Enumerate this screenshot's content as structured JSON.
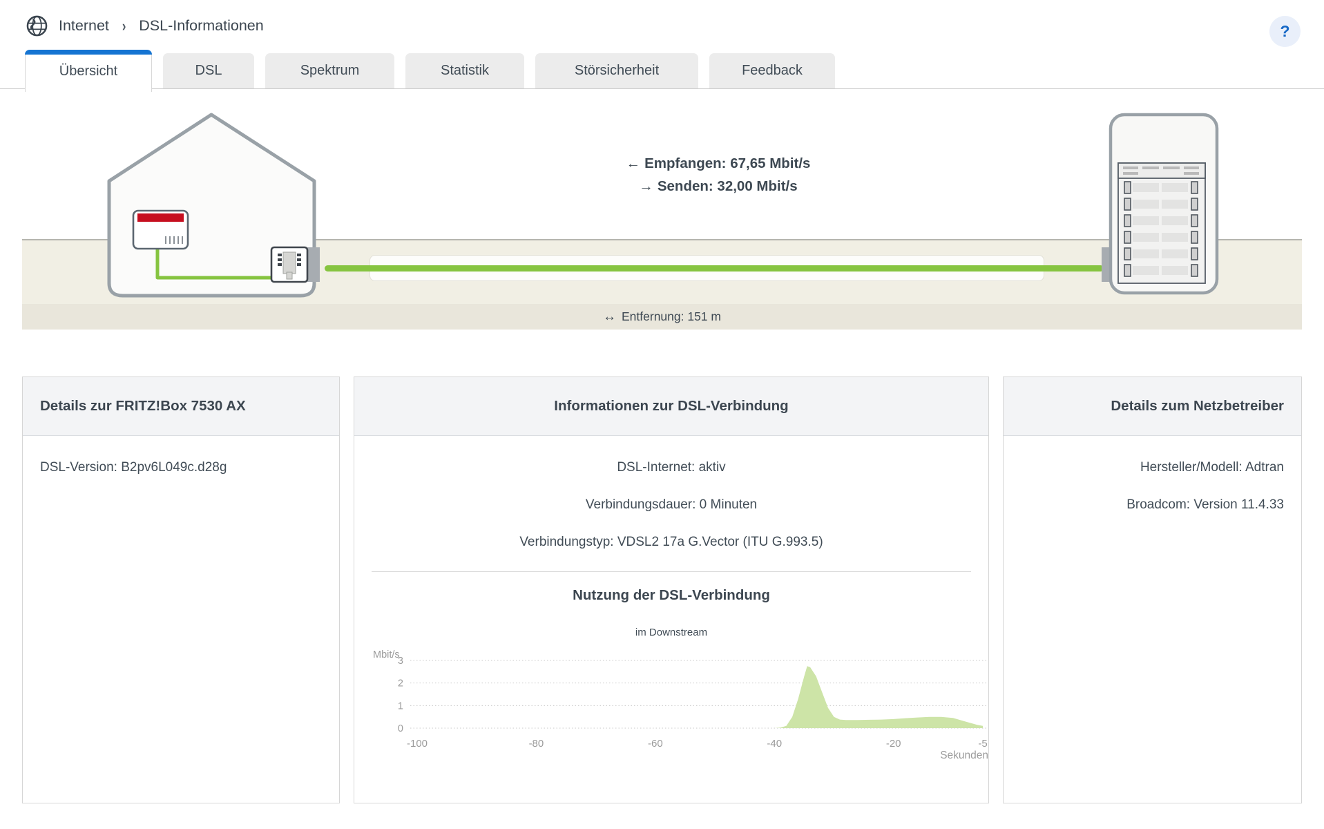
{
  "colors": {
    "accent_blue": "#1574d2",
    "link_green": "#86c440",
    "area_green": "#cde4a7",
    "fritz_red": "#c60e1f",
    "ground_beige": "#f1efe4",
    "strip_beige": "#e9e6db"
  },
  "breadcrumb": {
    "section": "Internet",
    "separator": "›",
    "page": "DSL-Informationen"
  },
  "help": {
    "label": "?"
  },
  "tabs": [
    {
      "label": "Übersicht",
      "active": true
    },
    {
      "label": "DSL",
      "active": false
    },
    {
      "label": "Spektrum",
      "active": false
    },
    {
      "label": "Statistik",
      "active": false
    },
    {
      "label": "Störsicherheit",
      "active": false
    },
    {
      "label": "Feedback",
      "active": false
    }
  ],
  "diagram": {
    "receive_arrow": "←",
    "receive_label": "Empfangen: 67,65 Mbit/s",
    "send_arrow": "→",
    "send_label": "Senden: 32,00 Mbit/s",
    "distance_arrow": "↔",
    "distance_label": "Entfernung: 151 m"
  },
  "cards": {
    "fritzbox": {
      "title": "Details zur FRITZ!Box 7530 AX",
      "lines": [
        "DSL-Version: B2pv6L049c.d28g"
      ]
    },
    "connection": {
      "title": "Informationen zur DSL-Verbindung",
      "lines": [
        "DSL-Internet: aktiv",
        "Verbindungsdauer: 0 Minuten",
        "Verbindungstyp: VDSL2 17a G.Vector (ITU G.993.5)"
      ],
      "usage_title": "Nutzung der DSL-Verbindung",
      "usage_subtitle": "im Downstream"
    },
    "provider": {
      "title": "Details zum Netzbetreiber",
      "lines": [
        "Hersteller/Modell: Adtran",
        "Broadcom: Version 11.4.33"
      ]
    }
  },
  "chart_data": {
    "type": "area",
    "title": "Nutzung der DSL-Verbindung",
    "subtitle": "im Downstream",
    "ylabel": "Mbit/s",
    "xlabel": "Sekunden",
    "ylim": [
      0,
      3
    ],
    "xlim": [
      -100,
      -5
    ],
    "yticks": [
      0,
      1,
      2,
      3
    ],
    "xticks": [
      -100,
      -80,
      -60,
      -40,
      -20,
      -5
    ],
    "grid": "dotted-horizontal",
    "legend": "none",
    "series": [
      {
        "name": "Downstream",
        "x": [
          -100,
          -95,
          -90,
          -85,
          -80,
          -75,
          -70,
          -65,
          -60,
          -55,
          -50,
          -45,
          -40,
          -39,
          -38,
          -37,
          -36,
          -35,
          -34.5,
          -34,
          -33,
          -32,
          -31,
          -30,
          -29,
          -28,
          -26,
          -24,
          -22,
          -20,
          -18,
          -16,
          -14,
          -12,
          -10,
          -8,
          -6,
          -5
        ],
        "y": [
          0,
          0,
          0,
          0,
          0,
          0,
          0,
          0,
          0,
          0,
          0,
          0,
          0,
          0.02,
          0.1,
          0.5,
          1.3,
          2.3,
          2.75,
          2.7,
          2.3,
          1.6,
          0.9,
          0.5,
          0.38,
          0.36,
          0.36,
          0.37,
          0.38,
          0.4,
          0.44,
          0.47,
          0.5,
          0.5,
          0.45,
          0.3,
          0.15,
          0.1
        ]
      }
    ],
    "colors": {
      "area": "#cde4a7",
      "grid": "#c9c9c9",
      "axis_text": "#9b9b9b"
    }
  }
}
